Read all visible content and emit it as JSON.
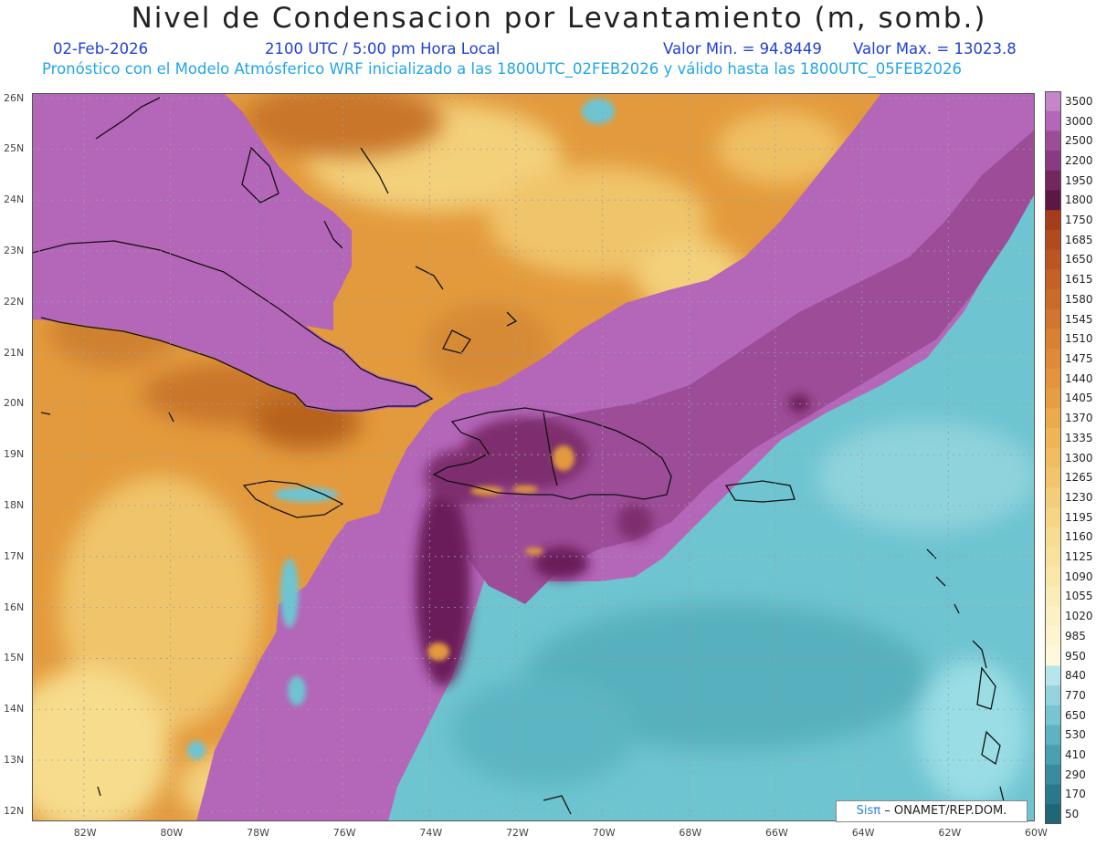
{
  "header": {
    "title": "Nivel de Condensacion por Levantamiento (m, somb.)",
    "date": "02-Feb-2026",
    "time": "2100 UTC / 5:00 pm Hora Local",
    "min_label": "Valor Min. = 94.8449",
    "max_label": "Valor Max. = 13023.8",
    "description": "Pronóstico con el Modelo Atmósferico WRF inicializado a las 1800UTC_02FEB2026 y válido hasta las  1800UTC_05FEB2026"
  },
  "map": {
    "lon_range": [
      -83.2,
      -60
    ],
    "lat_range": [
      11.8,
      26.1
    ],
    "lat_ticks": [
      "26N",
      "25N",
      "24N",
      "23N",
      "22N",
      "21N",
      "20N",
      "19N",
      "18N",
      "17N",
      "16N",
      "15N",
      "14N",
      "13N",
      "12N"
    ],
    "lon_ticks": [
      "82W",
      "80W",
      "78W",
      "76W",
      "74W",
      "72W",
      "70W",
      "68W",
      "66W",
      "64W",
      "62W",
      "60W"
    ],
    "colors": {
      "orange_mid": "#e39a3c",
      "orange_dark": "#c9762a",
      "yellow": "#f3d07a",
      "purple_light": "#b466b8",
      "purple_mid": "#9d4d98",
      "purple_dark": "#6b1f5a",
      "teal": "#6ec4d1",
      "teal_dark": "#4aa8b4"
    }
  },
  "colorbar": {
    "labels": [
      "3500",
      "3000",
      "2500",
      "2200",
      "1950",
      "1800",
      "1750",
      "1685",
      "1650",
      "1615",
      "1580",
      "1545",
      "1510",
      "1475",
      "1440",
      "1405",
      "1370",
      "1335",
      "1300",
      "1265",
      "1230",
      "1195",
      "1160",
      "1125",
      "1090",
      "1055",
      "1020",
      "985",
      "950",
      "840",
      "770",
      "650",
      "530",
      "410",
      "290",
      "170",
      "50"
    ],
    "colors": [
      "#c486c7",
      "#b466b8",
      "#9d4d98",
      "#8a3a82",
      "#73275f",
      "#5c1744",
      "#a63d1a",
      "#b24a1e",
      "#bb5522",
      "#c46126",
      "#cb6b2a",
      "#d2752e",
      "#d98033",
      "#df8a37",
      "#e3943c",
      "#e79e42",
      "#ebaa4c",
      "#eeb456",
      "#f0bd61",
      "#f2c56c",
      "#f4cd78",
      "#f6d585",
      "#f8dc92",
      "#f9e29e",
      "#fae8ab",
      "#fbedb8",
      "#fcf1c4",
      "#fdf5d0",
      "#fef8dc",
      "#b8e4ec",
      "#96d3df",
      "#78c4d1",
      "#5eb2c1",
      "#4a9fb0",
      "#388c9e",
      "#2a788b",
      "#1f6677"
    ]
  },
  "watermark": {
    "sis": "Sisπ",
    "org": "– ONAMET/REP.DOM."
  }
}
